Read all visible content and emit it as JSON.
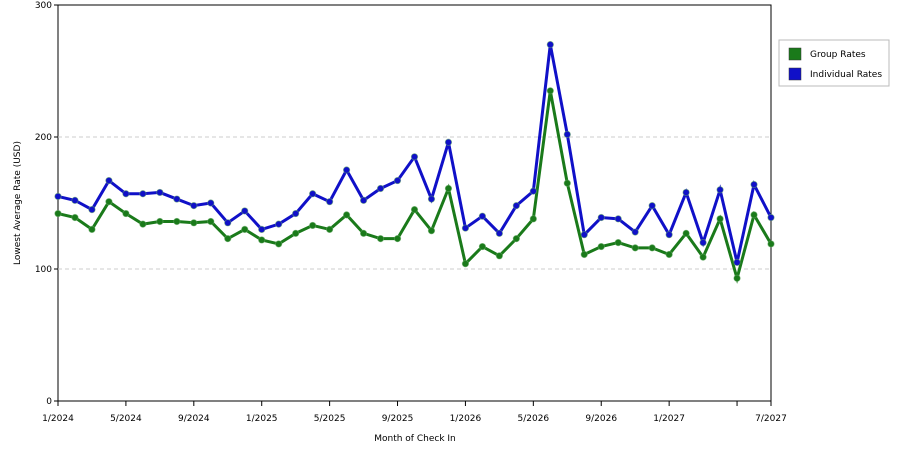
{
  "chart_data": {
    "type": "line",
    "x_label": "Month of Check In",
    "y_label": "Lowest Average Rate (USD)",
    "categories": [
      "1/2024",
      null,
      null,
      null,
      "5/2024",
      null,
      null,
      null,
      "9/2024",
      null,
      null,
      null,
      "1/2025",
      null,
      null,
      null,
      "5/2025",
      null,
      null,
      null,
      "9/2025",
      null,
      null,
      null,
      "1/2026",
      null,
      null,
      null,
      "5/2026",
      null,
      null,
      null,
      "9/2026",
      null,
      null,
      null,
      "1/2027",
      null,
      null,
      null,
      null,
      null,
      "7/2027"
    ],
    "series": [
      {
        "name": "Group Rates",
        "color": "#1a7a1a",
        "values": [
          142,
          139,
          130,
          151,
          142,
          134,
          136,
          136,
          135,
          136,
          123,
          130,
          122,
          119,
          127,
          133,
          130,
          141,
          127,
          123,
          123,
          145,
          129,
          161,
          104,
          117,
          110,
          123,
          138,
          235,
          165,
          111,
          117,
          120,
          116,
          116,
          111,
          127,
          109,
          138,
          93,
          141,
          119
        ]
      },
      {
        "name": "Individual Rates",
        "color": "#1010c8",
        "values": [
          155,
          152,
          145,
          167,
          157,
          157,
          158,
          153,
          148,
          150,
          135,
          144,
          130,
          134,
          142,
          157,
          151,
          175,
          152,
          161,
          167,
          185,
          153,
          196,
          131,
          140,
          127,
          148,
          159,
          270,
          202,
          126,
          139,
          138,
          128,
          148,
          126,
          158,
          120,
          160,
          105,
          164,
          139
        ]
      }
    ],
    "ylim": [
      0,
      300
    ],
    "yticks": [
      0,
      100,
      200,
      300
    ],
    "grid": true,
    "legend": "right"
  }
}
